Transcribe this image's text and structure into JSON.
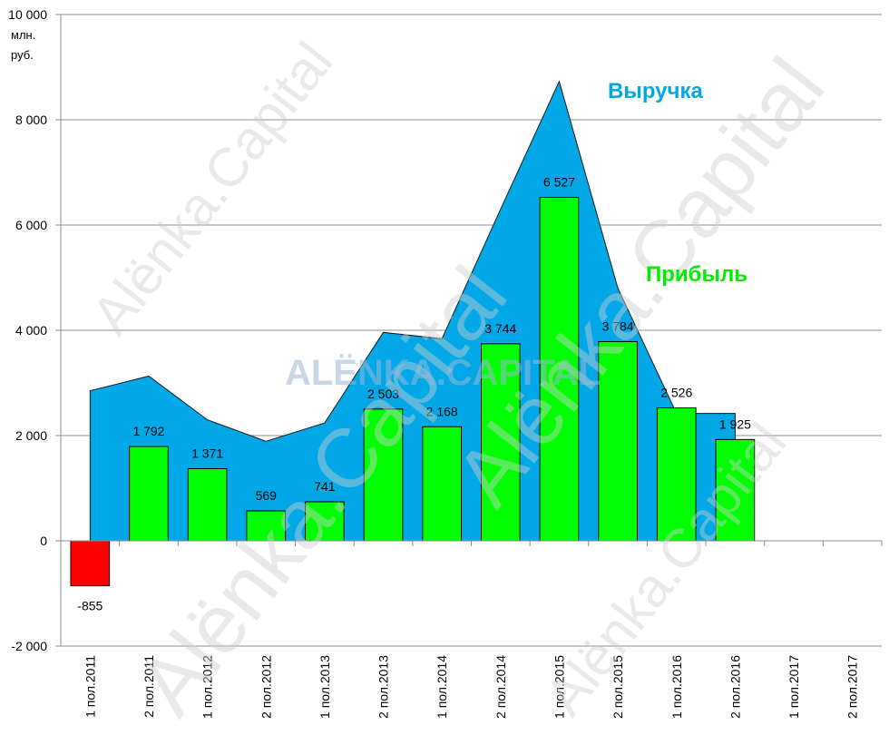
{
  "chart_data": {
    "type": "bar",
    "ylabel": "млн.\nруб.",
    "ylim": [
      -2000,
      10000
    ],
    "yticks": [
      -2000,
      0,
      2000,
      4000,
      6000,
      8000,
      10000
    ],
    "ytick_labels": [
      "-2 000",
      "0",
      "2 000",
      "4 000",
      "6 000",
      "8 000",
      "10 000"
    ],
    "categories": [
      "1 пол.2011",
      "2 пол.2011",
      "1 пол.2012",
      "2 пол.2012",
      "1 пол.2013",
      "2 пол.2013",
      "1 пол.2014",
      "2 пол.2014",
      "1 пол.2015",
      "2 пол.2015",
      "1 пол.2016",
      "2 пол.2016",
      "1 пол.2017",
      "2 пол.2017"
    ],
    "grid": true,
    "series": [
      {
        "name": "Выручка",
        "type": "area",
        "color": "#00a8e8",
        "values": [
          2850,
          3130,
          2300,
          1890,
          2240,
          3960,
          3840,
          6300,
          8730,
          4800,
          2420,
          2420,
          null,
          null
        ]
      },
      {
        "name": "Прибыль",
        "type": "bar",
        "color": "#00ff00",
        "negative_color": "#ff0000",
        "values": [
          -855,
          1792,
          1371,
          569,
          741,
          2503,
          2168,
          3744,
          6527,
          3784,
          2526,
          1925,
          null,
          null
        ],
        "labels": [
          "-855",
          "1 792",
          "1 371",
          "569",
          "741",
          "2 503",
          "2 168",
          "3 744",
          "6 527",
          "3 784",
          "2 526",
          "1 925",
          "",
          ""
        ]
      }
    ]
  },
  "watermark": {
    "diagonal_text": "Alënka.Capital",
    "center_text": "ALËNKA.CAPITAL"
  }
}
